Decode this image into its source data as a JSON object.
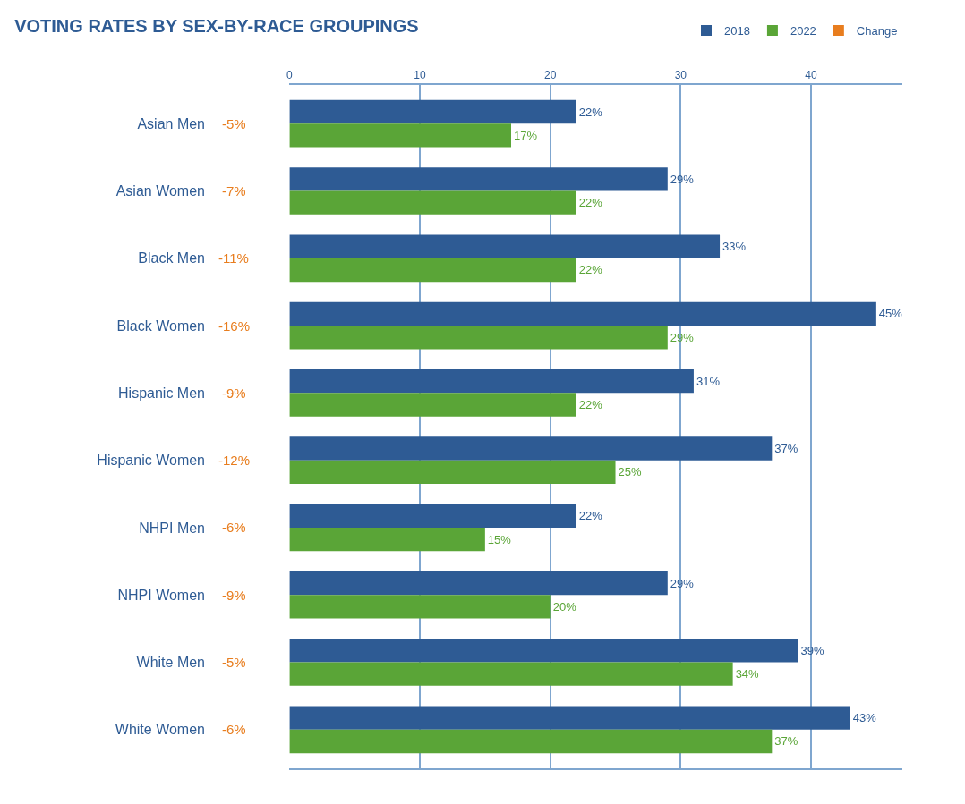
{
  "chart_data": {
    "type": "bar",
    "title": "VOTING RATES BY SEX-BY-RACE GROUPINGS",
    "orientation": "horizontal",
    "categories": [
      "Asian Men",
      "Asian Women",
      "Black Men",
      "Black Women",
      "Hispanic Men",
      "Hispanic Women",
      "NHPI Men",
      "NHPI Women",
      "White Men",
      "White Women"
    ],
    "series": [
      {
        "name": "2018",
        "color": "#2e5b94",
        "values": [
          22,
          29,
          33,
          45,
          31,
          37,
          22,
          29,
          39,
          43
        ],
        "value_labels": [
          "22%",
          "29%",
          "33%",
          "45%",
          "31%",
          "37%",
          "22%",
          "29%",
          "39%",
          "43%"
        ]
      },
      {
        "name": "2022",
        "color": "#5aa537",
        "values": [
          17,
          22,
          22,
          29,
          22,
          25,
          15,
          20,
          34,
          37
        ],
        "value_labels": [
          "17%",
          "22%",
          "22%",
          "29%",
          "22%",
          "25%",
          "15%",
          "20%",
          "34%",
          "37%"
        ]
      },
      {
        "name": "Change",
        "type": "other",
        "color": "#e87d1e",
        "values": [
          null,
          null,
          null,
          null,
          null,
          null,
          null,
          null,
          null,
          null
        ]
      }
    ],
    "annotations": [
      "-5%",
      "-7%",
      "-11%",
      "-16%",
      "-9%",
      "-12%",
      "-6%",
      "-9%",
      "-5%",
      "-6%"
    ],
    "xlim": [
      0,
      47
    ],
    "xticks": [
      0,
      10,
      20,
      30,
      40
    ],
    "grid": "x",
    "legend": "top right"
  }
}
